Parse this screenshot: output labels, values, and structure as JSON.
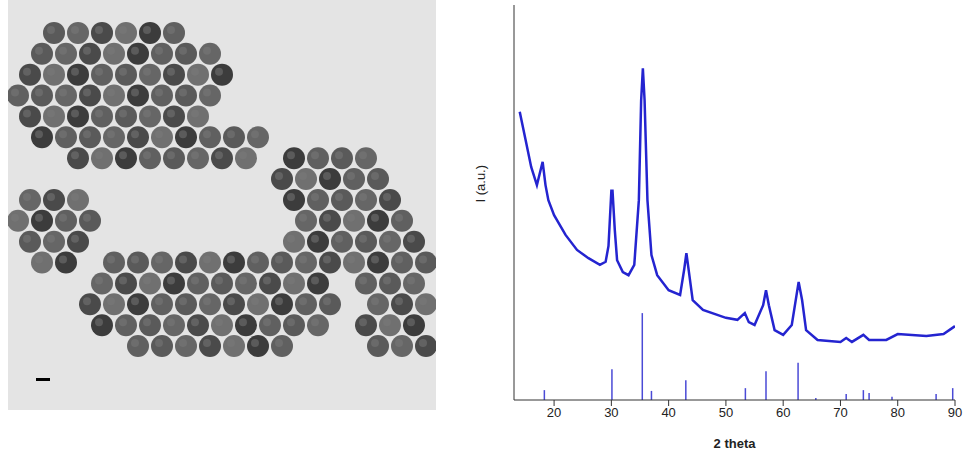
{
  "chart_data": {
    "type": "line",
    "x_label": "2 theta",
    "y_label": "I (a.u.)",
    "xlim": [
      13,
      90
    ],
    "xticks": [
      20,
      30,
      40,
      50,
      60,
      70,
      80,
      90
    ],
    "ylim": [
      0,
      100
    ],
    "tick_labels": "x",
    "grid": false,
    "series": [
      {
        "type": "line",
        "color": "#2424d0",
        "x": [
          14,
          15,
          16,
          17,
          18,
          18.5,
          19,
          20,
          22,
          24,
          26,
          28,
          29,
          29.5,
          30,
          30.2,
          30.6,
          31,
          32,
          33,
          34,
          34.8,
          35.2,
          35.5,
          35.8,
          36.3,
          37,
          38,
          40,
          42,
          42.7,
          43.1,
          43.5,
          44.2,
          46,
          50,
          52,
          53.3,
          54,
          55,
          56.5,
          57,
          57.5,
          58.5,
          60,
          61.5,
          62.7,
          63.3,
          64,
          66,
          70,
          71,
          72,
          74,
          75,
          78,
          80,
          85,
          88,
          90
        ],
        "values": [
          73,
          66,
          59,
          54.4,
          60.3,
          54.4,
          50.6,
          46.8,
          41.8,
          38,
          35.9,
          34.2,
          35,
          39,
          53,
          53,
          43,
          35.4,
          32.4,
          31.6,
          34.2,
          50.6,
          75.9,
          84,
          75.9,
          50.6,
          36.7,
          31.6,
          27.8,
          26.6,
          32.9,
          37.2,
          32.9,
          25.3,
          22.8,
          20.8,
          20.3,
          22,
          19.7,
          19,
          24,
          27.8,
          24,
          17.7,
          16.5,
          19,
          29.9,
          25.3,
          17.7,
          15.2,
          14.7,
          15.7,
          14.7,
          16.5,
          15.2,
          15.2,
          16.7,
          16.2,
          16.7,
          18.7
        ]
      },
      {
        "type": "bar",
        "color": "#4a4ad6",
        "x": [
          18.3,
          30.1,
          35.4,
          37,
          43,
          53.4,
          57,
          62.6,
          65.7,
          71,
          74,
          75,
          79,
          86.7,
          89.6
        ],
        "values": [
          2.5,
          7.8,
          22,
          2.3,
          5,
          3,
          7.3,
          9.4,
          0.5,
          1.5,
          2.5,
          1.8,
          0.8,
          1.5,
          3
        ]
      }
    ]
  }
}
